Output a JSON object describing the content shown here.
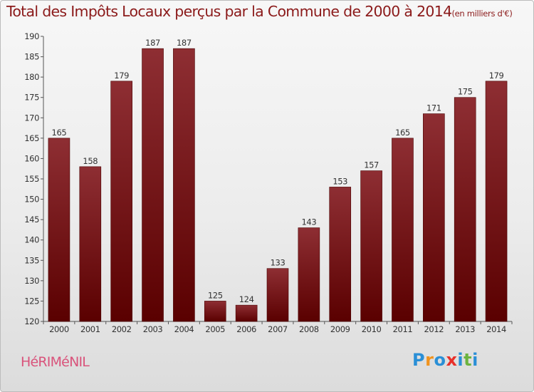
{
  "header": {
    "title": "Total des Impôts Locaux perçus par la Commune de 2000 à 2014",
    "unit": "(en milliers d'€)"
  },
  "footer": {
    "commune": "HéRIMéNIL",
    "logo": "Proxiti",
    "logo_letters": [
      {
        "char": "P",
        "color": "#2a8fd6"
      },
      {
        "char": "r",
        "color": "#f0931e"
      },
      {
        "char": "o",
        "color": "#2a8fd6"
      },
      {
        "char": "x",
        "color": "#e8302a"
      },
      {
        "char": "i",
        "color": "#2a8fd6"
      },
      {
        "char": "t",
        "color": "#6cb33f"
      },
      {
        "char": "i",
        "color": "#2a8fd6"
      }
    ]
  },
  "colors": {
    "bar_top": "#8e2e33",
    "bar_bottom": "#5a0000",
    "title": "#8b1a1a",
    "commune": "#d9537b"
  },
  "chart_data": {
    "type": "bar",
    "categories": [
      "2000",
      "2001",
      "2002",
      "2003",
      "2004",
      "2005",
      "2006",
      "2007",
      "2008",
      "2009",
      "2010",
      "2011",
      "2012",
      "2013",
      "2014"
    ],
    "values": [
      165,
      158,
      179,
      187,
      187,
      125,
      124,
      133,
      143,
      153,
      157,
      165,
      171,
      175,
      179
    ],
    "ylim": [
      120,
      190
    ],
    "yticks": [
      120,
      125,
      130,
      135,
      140,
      145,
      150,
      155,
      160,
      165,
      170,
      175,
      180,
      185,
      190
    ],
    "grid": false,
    "legend": "none"
  }
}
